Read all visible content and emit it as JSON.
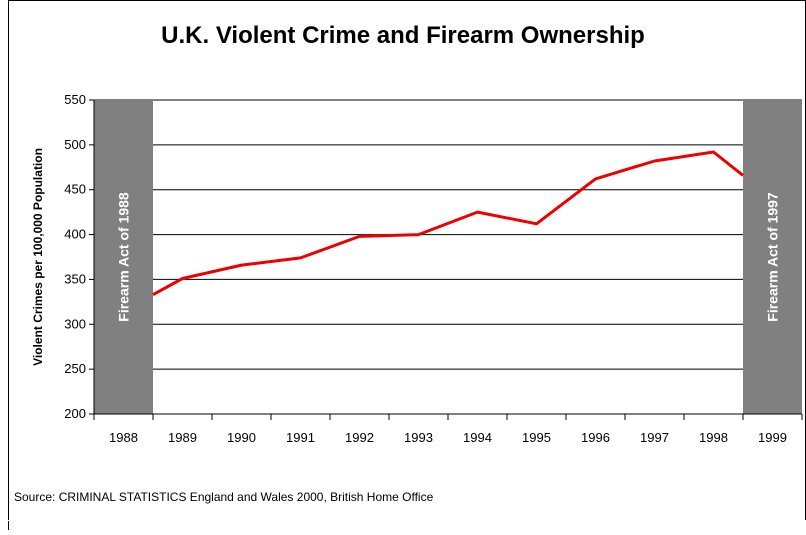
{
  "source": "Source: CRIMINAL STATISTICS England and Wales 2000, British Home Office",
  "chart_data": {
    "type": "line",
    "title": "U.K. Violent Crime and Firearm Ownership",
    "xlabel": "",
    "ylabel": "Violent Crimes per 100,000 Population",
    "categories": [
      "1988",
      "1989",
      "1990",
      "1991",
      "1992",
      "1993",
      "1994",
      "1995",
      "1996",
      "1997",
      "1998",
      "1999"
    ],
    "ylim": [
      200,
      550
    ],
    "yticks": [
      "200",
      "250",
      "300",
      "350",
      "400",
      "450",
      "500",
      "550"
    ],
    "grid": true,
    "series": [
      {
        "x": [
          1988.5,
          1989,
          1990,
          1991,
          1992,
          1993,
          1994,
          1995,
          1996,
          1997,
          1998,
          1998.5
        ],
        "values": [
          333,
          351,
          366,
          374,
          398,
          400,
          425,
          412,
          462,
          482,
          492,
          466
        ],
        "color": "#ee0000"
      }
    ],
    "annotations": [
      {
        "label": "Firearm Act of 1988",
        "category": "1988",
        "color": "#808080"
      },
      {
        "label": "Firearm Act of 1997",
        "category": "1999",
        "color": "#808080"
      }
    ]
  }
}
